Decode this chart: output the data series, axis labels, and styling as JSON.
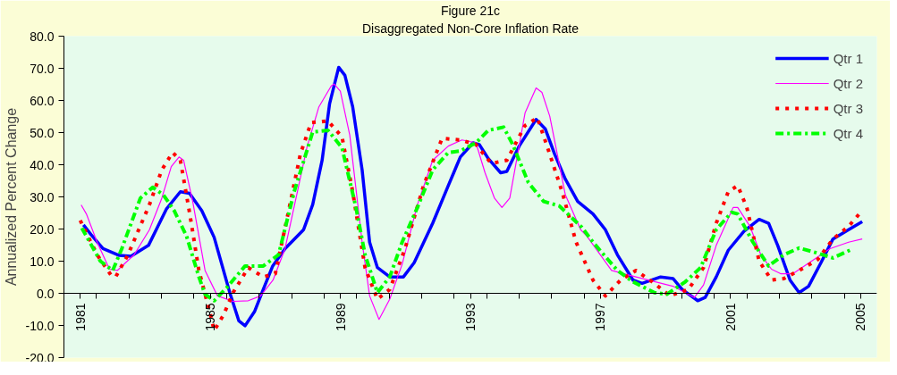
{
  "chart_data": {
    "type": "line",
    "title": "Figure 21c",
    "subtitle": "Disaggregated Non-Core Inflation Rate",
    "ylabel": "Annualized Percent Change",
    "xlim": [
      1980.5,
      2005.5
    ],
    "xticks": [
      {
        "value": 1981,
        "label": "1981"
      },
      {
        "value": 1985,
        "label": "1985"
      },
      {
        "value": 1989,
        "label": "1989"
      },
      {
        "value": 1993,
        "label": "1993"
      },
      {
        "value": 1997,
        "label": "1997"
      },
      {
        "value": 2001,
        "label": "2001"
      },
      {
        "value": 2005,
        "label": "2005"
      },
      {
        "value": 1981.5,
        "label": null
      },
      {
        "value": 1982.5,
        "label": null
      },
      {
        "value": 1983.5,
        "label": null
      },
      {
        "value": 1984.5,
        "label": null
      },
      {
        "value": 1985.5,
        "label": null
      },
      {
        "value": 1986.5,
        "label": null
      },
      {
        "value": 1987.5,
        "label": null
      },
      {
        "value": 1988.5,
        "label": null
      },
      {
        "value": 1989.5,
        "label": null
      },
      {
        "value": 1990.5,
        "label": null
      },
      {
        "value": 1991.5,
        "label": null
      },
      {
        "value": 1992.5,
        "label": null
      },
      {
        "value": 1993.5,
        "label": null
      },
      {
        "value": 1994.5,
        "label": null
      },
      {
        "value": 1995.5,
        "label": null
      },
      {
        "value": 1996.5,
        "label": null
      },
      {
        "value": 1997.5,
        "label": null
      },
      {
        "value": 1998.5,
        "label": null
      },
      {
        "value": 1999.5,
        "label": null
      },
      {
        "value": 2000.5,
        "label": null
      },
      {
        "value": 2001.5,
        "label": null
      },
      {
        "value": 2002.5,
        "label": null
      },
      {
        "value": 2003.5,
        "label": null
      },
      {
        "value": 2004.5,
        "label": null
      }
    ],
    "ylim": [
      -20,
      80
    ],
    "yticks": [
      {
        "value": -20,
        "label": "-20.0"
      },
      {
        "value": -10,
        "label": "-10.0"
      },
      {
        "value": 0,
        "label": "0.0"
      },
      {
        "value": 10,
        "label": "10.0"
      },
      {
        "value": 20,
        "label": "20.0"
      },
      {
        "value": 30,
        "label": "30.0"
      },
      {
        "value": 40,
        "label": "40.0"
      },
      {
        "value": 50,
        "label": "50.0"
      },
      {
        "value": 60,
        "label": "60.0"
      },
      {
        "value": 70,
        "label": "70.0"
      },
      {
        "value": 80,
        "label": "80.0"
      }
    ],
    "grid": false,
    "legend": "top right",
    "marker": "none",
    "series": [
      {
        "name": "Qtr 1",
        "color": "#0000ff",
        "line_style": "solid",
        "x": [
          1981.1,
          1981.33,
          1981.7,
          1982.2,
          1982.56,
          1983.1,
          1983.65,
          1984.08,
          1984.36,
          1984.74,
          1985.12,
          1985.6,
          1985.88,
          1986.07,
          1986.36,
          1986.63,
          1986.92,
          1987.3,
          1987.87,
          1988.15,
          1988.44,
          1988.67,
          1988.95,
          1989.14,
          1989.38,
          1989.67,
          1989.9,
          1990.14,
          1990.52,
          1990.94,
          1991.27,
          1991.84,
          1992.32,
          1992.69,
          1993.08,
          1993.27,
          1993.55,
          1993.93,
          1994.12,
          1994.5,
          1995.02,
          1995.3,
          1995.59,
          1995.92,
          1996.3,
          1996.77,
          1997.15,
          1997.52,
          1998.0,
          1998.28,
          1998.85,
          1999.23,
          1999.51,
          1999.99,
          2000.22,
          2000.56,
          2000.93,
          2001.41,
          2001.88,
          2002.17,
          2002.45,
          2002.83,
          2003.11,
          2003.4,
          2003.78,
          2004.15,
          2004.63,
          2005.05
        ],
        "values": [
          21.3,
          18.3,
          13.9,
          11.8,
          11.5,
          14.9,
          26.2,
          31.6,
          31.1,
          25.7,
          17.4,
          0.2,
          -8.6,
          -10.1,
          -5.7,
          1.2,
          8.5,
          13.9,
          19.8,
          27.6,
          41.4,
          59,
          70.3,
          67.8,
          58,
          38.4,
          15.9,
          8,
          5.1,
          5.1,
          9.5,
          21.8,
          33.5,
          42.4,
          46.8,
          46.3,
          41.9,
          37.5,
          37.9,
          45.8,
          54.1,
          51.2,
          43.3,
          35.5,
          28.6,
          24.7,
          19.8,
          12,
          4.1,
          3.1,
          5.1,
          4.6,
          1.2,
          -2.3,
          -1.3,
          5.1,
          13.4,
          19.3,
          23,
          21.8,
          14.9,
          4.1,
          0.2,
          2.2,
          9.5,
          16.9,
          19.8,
          22.3
        ]
      },
      {
        "name": "Qtr 2",
        "color": "#ff00ff",
        "line_style": "solid",
        "x": [
          1981.03,
          1981.19,
          1981.52,
          1981.9,
          1982.14,
          1982.66,
          1983.13,
          1983.51,
          1983.8,
          1984.04,
          1984.18,
          1984.46,
          1984.84,
          1985.22,
          1985.7,
          1986.17,
          1986.55,
          1986.93,
          1987.3,
          1987.68,
          1987.97,
          1988.34,
          1988.72,
          1988.81,
          1989.0,
          1989.29,
          1989.67,
          1989.9,
          1990.19,
          1990.52,
          1990.9,
          1991.37,
          1991.84,
          1992.32,
          1992.74,
          1993.17,
          1993.45,
          1993.74,
          1993.97,
          1994.21,
          1994.68,
          1995.02,
          1995.2,
          1995.44,
          1995.92,
          1996.39,
          1996.58,
          1997.34,
          1998.09,
          1999.23,
          1999.89,
          2000.17,
          2000.56,
          2001.08,
          2001.22,
          2001.6,
          2001.93,
          2002.26,
          2002.54,
          2002.92,
          2003.49,
          2004.06,
          2004.63,
          2005.05
        ],
        "values": [
          27.5,
          24.7,
          15.9,
          7.5,
          7.1,
          12,
          19.8,
          29.6,
          39.4,
          42.4,
          41.4,
          28.6,
          7.1,
          -0.8,
          -2.5,
          -2.3,
          -0.8,
          4.1,
          13.9,
          31.6,
          45.3,
          58,
          64.5,
          65.1,
          62.9,
          49.2,
          15.9,
          -0.8,
          -8.1,
          -1.8,
          9,
          27.6,
          41.4,
          45.8,
          47.7,
          46.8,
          37.5,
          29.6,
          26.7,
          29.6,
          56.1,
          63.9,
          62.5,
          55.1,
          30.6,
          19.8,
          17.8,
          7.1,
          5.1,
          2.2,
          -1.3,
          2.6,
          14.9,
          26.7,
          26.7,
          20.8,
          12,
          7.5,
          6.1,
          6.1,
          10,
          13.9,
          15.9,
          16.9
        ]
      },
      {
        "name": "Qtr 3",
        "color": "#ff0000",
        "line_style": "dotted",
        "x": [
          1981.0,
          1981.52,
          1981.95,
          1982.09,
          1982.47,
          1983.13,
          1983.51,
          1983.84,
          1984.08,
          1984.37,
          1984.65,
          1985.03,
          1985.12,
          1985.41,
          1985.7,
          1986.17,
          1986.63,
          1987.0,
          1987.39,
          1987.77,
          1988.1,
          1988.62,
          1989.05,
          1989.38,
          1989.76,
          1990.14,
          1990.52,
          1990.99,
          1991.56,
          1992.13,
          1992.69,
          1993.17,
          1993.64,
          1994.12,
          1994.68,
          1995.06,
          1995.44,
          1995.82,
          1996.25,
          1996.77,
          1997.15,
          1997.62,
          1998.09,
          1998.66,
          1999.13,
          1999.7,
          2000.17,
          2000.56,
          2000.93,
          2001.22,
          2001.5,
          2001.88,
          2002.26,
          2002.64,
          2003.11,
          2003.68,
          2004.15,
          2004.63,
          2005.0
        ],
        "values": [
          22.7,
          12,
          5.6,
          5.1,
          12,
          27.6,
          38.4,
          43.8,
          41.4,
          24.7,
          7.1,
          -7.6,
          -11.6,
          -6.7,
          0.2,
          8,
          5.1,
          6.1,
          24.7,
          43.3,
          53.1,
          53.6,
          48.7,
          31.6,
          8,
          -1.8,
          1.2,
          13.9,
          33.5,
          48.2,
          47.7,
          46.3,
          40.4,
          41.4,
          52.2,
          54.6,
          43.3,
          31.6,
          15.9,
          4.1,
          -0.8,
          4.1,
          7.1,
          3.1,
          -0.8,
          1.2,
          8,
          21.8,
          31.6,
          33.5,
          26.7,
          10,
          4.1,
          4.6,
          7.1,
          10.5,
          16.9,
          20.8,
          25.2
        ]
      },
      {
        "name": "Qtr 4",
        "color": "#00ff00",
        "line_style": "dashed",
        "x": [
          1981.05,
          1981.62,
          1982.0,
          1982.28,
          1982.85,
          1983.23,
          1983.56,
          1983.89,
          1984.27,
          1984.65,
          1984.84,
          1985.12,
          1985.5,
          1986.07,
          1986.63,
          1987.1,
          1987.58,
          1988.15,
          1988.62,
          1989.05,
          1989.48,
          1989.76,
          1990.14,
          1990.52,
          1990.9,
          1991.37,
          1991.84,
          1992.32,
          1992.69,
          1993.17,
          1993.55,
          1994.02,
          1994.3,
          1994.78,
          1995.25,
          1995.73,
          1996.1,
          1996.43,
          1996.77,
          1997.52,
          1998.0,
          1998.66,
          1999.04,
          1999.61,
          2000.08,
          2000.56,
          2001.03,
          2001.22,
          2001.69,
          2002.17,
          2002.64,
          2003.11,
          2003.68,
          2004.15,
          2004.67
        ],
        "values": [
          20.3,
          10,
          7.1,
          13.9,
          29.6,
          33,
          30.6,
          25.7,
          17.8,
          5.1,
          -0.3,
          -2.3,
          1.7,
          8.5,
          8.5,
          12,
          31.6,
          50.2,
          50.7,
          45.3,
          26.7,
          12,
          0.2,
          5.1,
          15.9,
          26.7,
          38.4,
          43.8,
          44.3,
          46.8,
          50.7,
          51.7,
          46.3,
          34.5,
          28.6,
          27.2,
          23.7,
          20.5,
          15.9,
          7.1,
          3.6,
          0.2,
          -0.3,
          3.6,
          8,
          19.8,
          25.2,
          24.7,
          15.9,
          8.5,
          12,
          14.1,
          12.5,
          11,
          13.4
        ]
      }
    ]
  }
}
